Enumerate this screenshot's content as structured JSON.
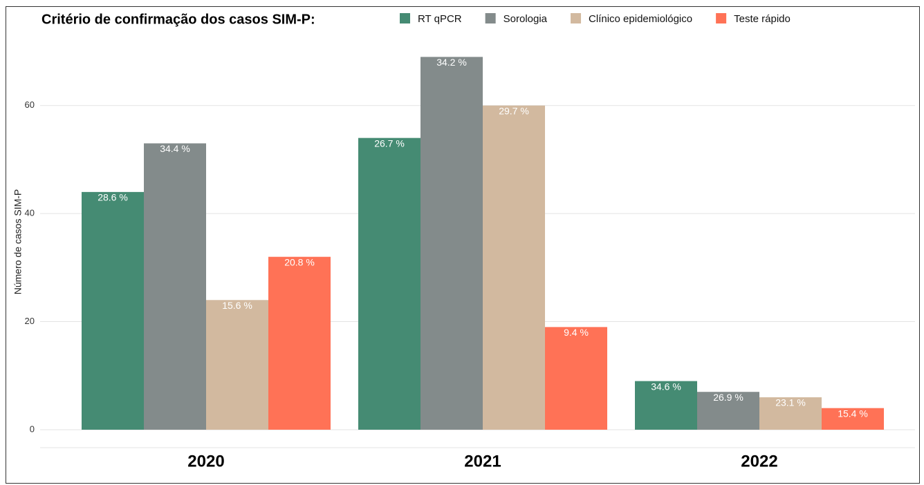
{
  "chart_data": {
    "type": "bar",
    "title": "Critério de confirmação dos casos SIM-P:",
    "y_label": "Número de casos SIM-P",
    "categories": [
      "2020",
      "2021",
      "2022"
    ],
    "series": [
      {
        "name": "RT qPCR",
        "color": "#458b73",
        "values": [
          44,
          54,
          9
        ],
        "percent_labels": [
          "28.6 %",
          "26.7 %",
          "34.6 %"
        ]
      },
      {
        "name": "Sorologia",
        "color": "#838b8b",
        "values": [
          53,
          69,
          7
        ],
        "percent_labels": [
          "34.4 %",
          "34.2 %",
          "26.9 %"
        ]
      },
      {
        "name": "Clínico epidemiológico",
        "color": "#d2b99f",
        "values": [
          24,
          60,
          6
        ],
        "percent_labels": [
          "15.6 %",
          "29.7 %",
          "23.1 %"
        ]
      },
      {
        "name": "Teste rápido",
        "color": "#ff7256",
        "values": [
          32,
          19,
          4
        ],
        "percent_labels": [
          "20.8 %",
          "9.4 %",
          "15.4 %"
        ]
      }
    ],
    "ylim": [
      -3.33,
      72.5
    ],
    "yticks": [
      0,
      20,
      40,
      60
    ],
    "grid": true,
    "legend": "top"
  }
}
